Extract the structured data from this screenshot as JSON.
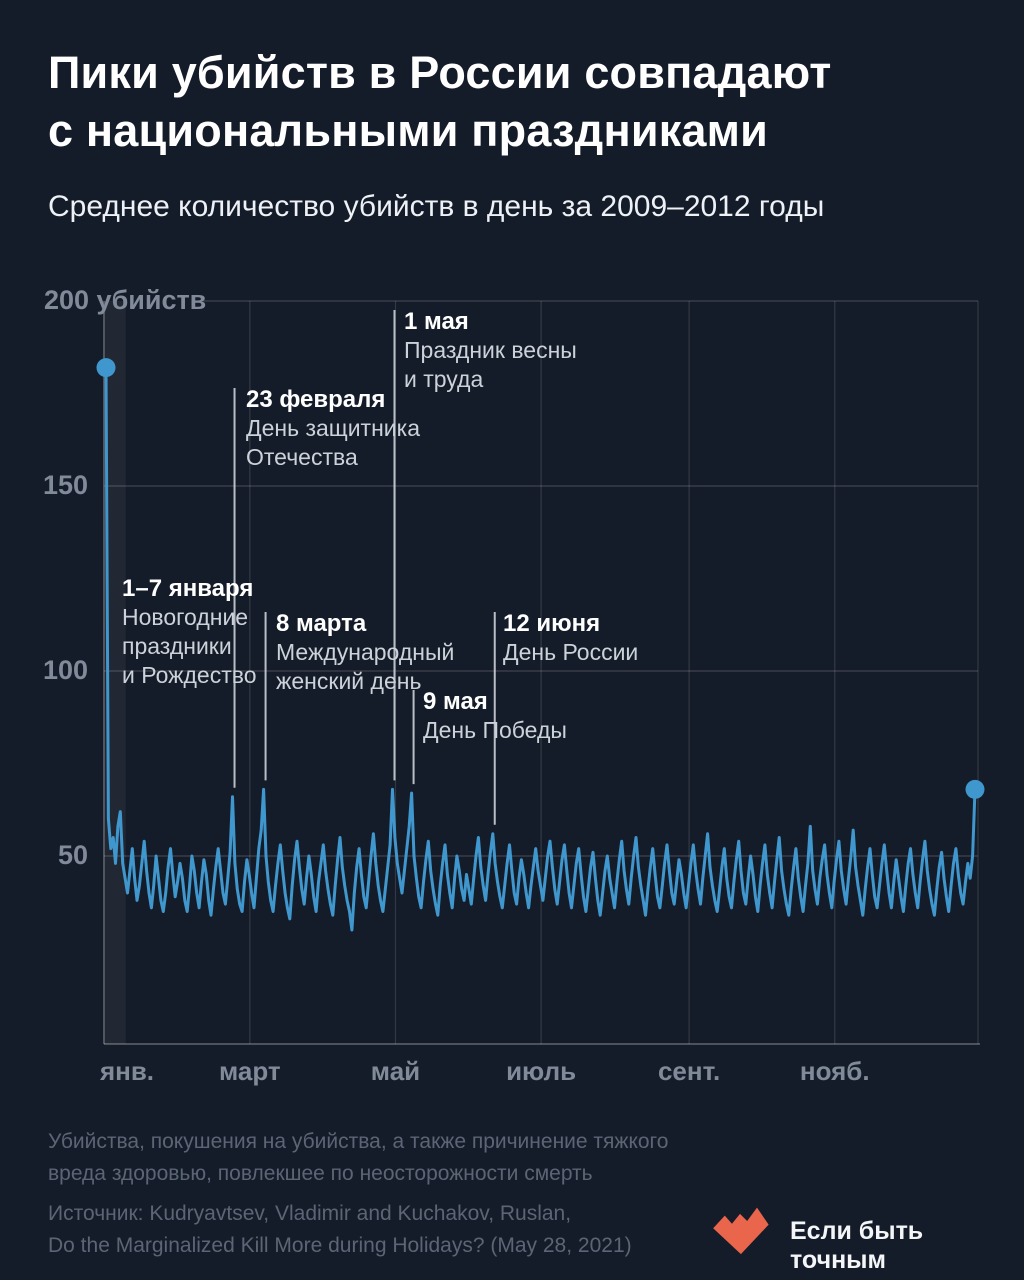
{
  "meta": {
    "background_color": "#151c29",
    "line_color": "#3f97cd",
    "logo_color": "#e9654c",
    "gridline_color": "#434c5c",
    "label_color": "#818a99"
  },
  "header": {
    "title": "Пики убийств в России совпадают\nс национальными праздниками",
    "subtitle": "Среднее количество убийств в день за 2009–2012 годы"
  },
  "chart_data": {
    "type": "line",
    "title": "Среднее количество убийств в день за 2009–2012 годы",
    "ylabel": "убийств",
    "ylim": [
      0,
      200
    ],
    "grid": true,
    "y_ticks": [
      {
        "value": 200,
        "label": "200 убийств"
      },
      {
        "value": 150,
        "label": "150"
      },
      {
        "value": 100,
        "label": "100"
      },
      {
        "value": 50,
        "label": "50"
      }
    ],
    "x_ticks": [
      {
        "label": "янв.",
        "day": 1
      },
      {
        "label": "март",
        "day": 60
      },
      {
        "label": "май",
        "day": 121
      },
      {
        "label": "июль",
        "day": 182
      },
      {
        "label": "сент.",
        "day": 244
      },
      {
        "label": "нояб.",
        "day": 305
      }
    ],
    "highlight_band": {
      "from_day": 1,
      "to_day": 8
    },
    "endpoint_marker_days": [
      1,
      365
    ],
    "annotations": [
      {
        "date": "1–7 января",
        "text": "Новогодние\nпраздники\nи Рождество",
        "day": 3,
        "leader": false
      },
      {
        "date": "23 февраля",
        "text": "День защитника\nОтечества",
        "day": 54,
        "leader": true
      },
      {
        "date": "8 марта",
        "text": "Международный\nженский день",
        "day": 67,
        "leader": true
      },
      {
        "date": "1 мая",
        "text": "Праздник весны\nи труда",
        "day": 121,
        "leader": true
      },
      {
        "date": "9 мая",
        "text": "День Победы",
        "day": 129,
        "leader": true
      },
      {
        "date": "12 июня",
        "text": "День России",
        "day": 163,
        "leader": true
      }
    ],
    "series": [
      {
        "name": "Среднее количество убийств в день",
        "values": [
          182,
          60,
          52,
          55,
          48,
          58,
          62,
          48,
          44,
          40,
          46,
          52,
          44,
          38,
          42,
          48,
          54,
          46,
          40,
          36,
          42,
          50,
          44,
          38,
          35,
          40,
          47,
          52,
          45,
          39,
          43,
          48,
          44,
          38,
          35,
          42,
          50,
          46,
          40,
          36,
          43,
          49,
          45,
          38,
          34,
          41,
          47,
          52,
          46,
          40,
          37,
          44,
          51,
          66,
          48,
          41,
          37,
          35,
          43,
          49,
          45,
          40,
          36,
          44,
          52,
          57,
          68,
          50,
          43,
          38,
          35,
          42,
          48,
          53,
          46,
          40,
          36,
          33,
          42,
          49,
          54,
          47,
          41,
          37,
          44,
          50,
          45,
          39,
          35,
          43,
          48,
          53,
          46,
          41,
          37,
          34,
          42,
          49,
          55,
          47,
          42,
          38,
          35,
          30,
          40,
          47,
          52,
          45,
          39,
          36,
          43,
          50,
          56,
          48,
          42,
          38,
          35,
          41,
          47,
          53,
          68,
          55,
          48,
          44,
          40,
          46,
          52,
          58,
          67,
          50,
          44,
          39,
          36,
          43,
          49,
          54,
          46,
          41,
          37,
          34,
          42,
          48,
          53,
          45,
          40,
          36,
          44,
          50,
          46,
          41,
          38,
          45,
          41,
          37,
          44,
          50,
          55,
          47,
          42,
          38,
          45,
          51,
          56,
          48,
          43,
          39,
          36,
          42,
          48,
          53,
          46,
          40,
          37,
          44,
          49,
          45,
          40,
          36,
          42,
          47,
          52,
          46,
          42,
          38,
          44,
          50,
          54,
          47,
          41,
          37,
          43,
          49,
          53,
          46,
          40,
          36,
          42,
          48,
          52,
          45,
          39,
          35,
          41,
          47,
          51,
          44,
          38,
          34,
          40,
          46,
          50,
          44,
          40,
          36,
          43,
          49,
          54,
          46,
          41,
          37,
          44,
          50,
          55,
          47,
          42,
          38,
          34,
          41,
          47,
          52,
          45,
          39,
          36,
          42,
          48,
          53,
          46,
          40,
          37,
          43,
          49,
          45,
          40,
          36,
          42,
          48,
          53,
          46,
          41,
          37,
          44,
          50,
          56,
          47,
          42,
          38,
          35,
          41,
          47,
          52,
          44,
          39,
          36,
          43,
          49,
          54,
          46,
          40,
          37,
          44,
          50,
          45,
          39,
          35,
          42,
          48,
          53,
          45,
          40,
          36,
          43,
          49,
          55,
          46,
          41,
          37,
          34,
          41,
          47,
          52,
          44,
          39,
          35,
          42,
          48,
          58,
          46,
          41,
          37,
          44,
          49,
          53,
          45,
          40,
          36,
          43,
          49,
          54,
          46,
          41,
          37,
          44,
          50,
          57,
          47,
          42,
          38,
          34,
          41,
          47,
          52,
          45,
          39,
          36,
          42,
          48,
          53,
          46,
          40,
          36,
          43,
          49,
          44,
          39,
          35,
          42,
          48,
          52,
          45,
          40,
          36,
          43,
          49,
          54,
          46,
          41,
          37,
          34,
          41,
          47,
          51,
          44,
          39,
          35,
          42,
          48,
          52,
          45,
          40,
          37,
          43,
          48,
          44,
          50,
          68
        ]
      }
    ]
  },
  "footer": {
    "note": "Убийства, покушения на убийства, а также причинение тяжкого\nвреда здоровью, повлекшее по неосторожности смерть",
    "source": "Источник: Kudryavtsev, Vladimir and Kuchakov, Ruslan,\nDo the Marginalized Kill More during Holidays? (May 28, 2021)",
    "brand": "Если быть точным"
  }
}
